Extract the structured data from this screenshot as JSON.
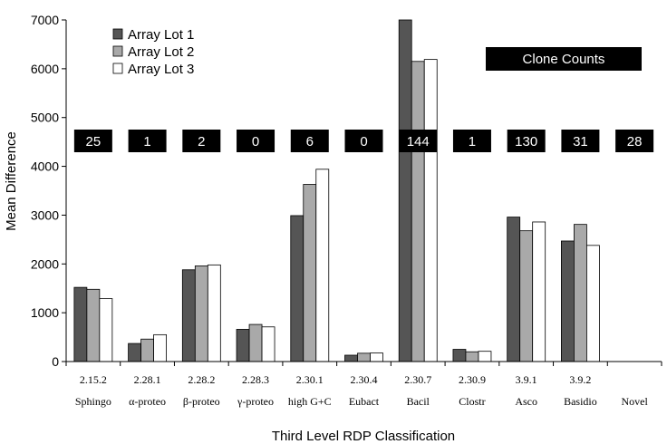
{
  "chart_data": {
    "type": "bar",
    "xlabel": "Third Level RDP Classification",
    "ylabel": "Mean Difference",
    "ylim": [
      0,
      7000
    ],
    "yticks": [
      0,
      1000,
      2000,
      3000,
      4000,
      5000,
      6000,
      7000
    ],
    "grid": false,
    "legend_position": "top-left",
    "codes": [
      "2.15.2",
      "2.28.1",
      "2.28.2",
      "2.28.3",
      "2.30.1",
      "2.30.4",
      "2.30.7",
      "2.30.9",
      "3.9.1",
      "3.9.2",
      ""
    ],
    "categories": [
      "Sphingo",
      "α-proteo",
      "β-proteo",
      "γ-proteo",
      "high G+C",
      "Eubact",
      "Bacil",
      "Clostr",
      "Asco",
      "Basidio",
      "Novel"
    ],
    "series": [
      {
        "name": "Array Lot 1",
        "color": "#555555",
        "values": [
          1520,
          370,
          1880,
          660,
          2990,
          130,
          7000,
          250,
          2960,
          2470,
          null
        ]
      },
      {
        "name": "Array Lot 2",
        "color": "#a9a9a9",
        "values": [
          1480,
          460,
          1960,
          760,
          3630,
          170,
          6150,
          200,
          2680,
          2810,
          null
        ]
      },
      {
        "name": "Array Lot 3",
        "color": "#ffffff",
        "values": [
          1290,
          550,
          1980,
          710,
          3940,
          175,
          6190,
          210,
          2860,
          2380,
          null
        ]
      }
    ],
    "annotation_title": "Clone Counts",
    "clone_counts": [
      "25",
      "1",
      "2",
      "0",
      "6",
      "0",
      "144",
      "1",
      "130",
      "31",
      "28"
    ]
  }
}
